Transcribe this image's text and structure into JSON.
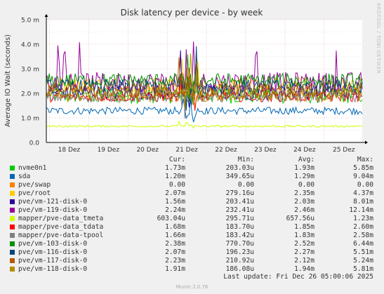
{
  "chart_data": {
    "type": "line",
    "title": "Disk latency per device - by week",
    "ylabel": "Average IO Wait (seconds)",
    "xlabel": "",
    "ylim": [
      0,
      5
    ],
    "y_ticks": [
      "0.0",
      "1.0 m",
      "2.0 m",
      "3.0 m",
      "4.0 m",
      "5.0 m"
    ],
    "x_ticks": [
      "18 Dez",
      "19 Dez",
      "20 Dez",
      "21 Dez",
      "22 Dez",
      "23 Dez",
      "24 Dez",
      "25 Dez"
    ],
    "grid": true,
    "legend_placement": "bottom",
    "legend_headers": {
      "cur": "Cur:",
      "min": "Min:",
      "avg": "Avg:",
      "max": "Max:"
    },
    "series": [
      {
        "name": "nvme0n1",
        "color": "#00cc00",
        "cur": "1.73m",
        "min": "203.03u",
        "avg": "1.93m",
        "max": "5.85m",
        "level": 1.93,
        "amp": 0.35
      },
      {
        "name": "sda",
        "color": "#0066b3",
        "cur": "1.20m",
        "min": "349.65u",
        "avg": "1.29m",
        "max": "9.04m",
        "level": 1.29,
        "amp": 0.15
      },
      {
        "name": "pve/swap",
        "color": "#ff8000",
        "cur": "0.00",
        "min": "0.00",
        "avg": "0.00",
        "max": "0.00",
        "level": 0.0,
        "amp": 0.0
      },
      {
        "name": "pve/root",
        "color": "#ffcc00",
        "cur": "2.07m",
        "min": "279.16u",
        "avg": "2.35m",
        "max": "4.37m",
        "level": 2.35,
        "amp": 0.3
      },
      {
        "name": "pve/vm-121-disk-0",
        "color": "#330099",
        "cur": "1.56m",
        "min": "203.41u",
        "avg": "2.03m",
        "max": "8.01m",
        "level": 2.03,
        "amp": 0.3
      },
      {
        "name": "pve/vm-119-disk-0",
        "color": "#990099",
        "cur": "2.24m",
        "min": "232.41u",
        "avg": "2.46m",
        "max": "12.14m",
        "level": 2.46,
        "amp": 0.4
      },
      {
        "name": "mapper/pve-data_tmeta",
        "color": "#ccff00",
        "cur": "603.04u",
        "min": "295.71u",
        "avg": "657.56u",
        "max": "1.23m",
        "level": 0.66,
        "amp": 0.04
      },
      {
        "name": "mapper/pve-data_tdata",
        "color": "#ff0000",
        "cur": "1.68m",
        "min": "183.70u",
        "avg": "1.85m",
        "max": "2.60m",
        "level": 1.85,
        "amp": 0.2
      },
      {
        "name": "mapper/pve-data-tpool",
        "color": "#808080",
        "cur": "1.66m",
        "min": "183.42u",
        "avg": "1.83m",
        "max": "2.58m",
        "level": 1.83,
        "amp": 0.2
      },
      {
        "name": "pve/vm-103-disk-0",
        "color": "#008f00",
        "cur": "2.38m",
        "min": "770.70u",
        "avg": "2.52m",
        "max": "6.44m",
        "level": 2.52,
        "amp": 0.3
      },
      {
        "name": "pve/vm-116-disk-0",
        "color": "#00487d",
        "cur": "2.07m",
        "min": "196.23u",
        "avg": "2.27m",
        "max": "5.51m",
        "level": 2.27,
        "amp": 0.3
      },
      {
        "name": "pve/vm-117-disk-0",
        "color": "#b35a00",
        "cur": "2.23m",
        "min": "210.92u",
        "avg": "2.12m",
        "max": "5.24m",
        "level": 2.12,
        "amp": 0.3
      },
      {
        "name": "pve/vm-118-disk-0",
        "color": "#b38f00",
        "cur": "1.91m",
        "min": "186.08u",
        "avg": "1.94m",
        "max": "5.81m",
        "level": 1.94,
        "amp": 0.3
      }
    ]
  },
  "last_update": "Last update: Fri Dec 26 05:00:06 2025",
  "munin_version": "Munin 2.0.76",
  "side_label": "RRDTOOL / TOBI OETIKER"
}
